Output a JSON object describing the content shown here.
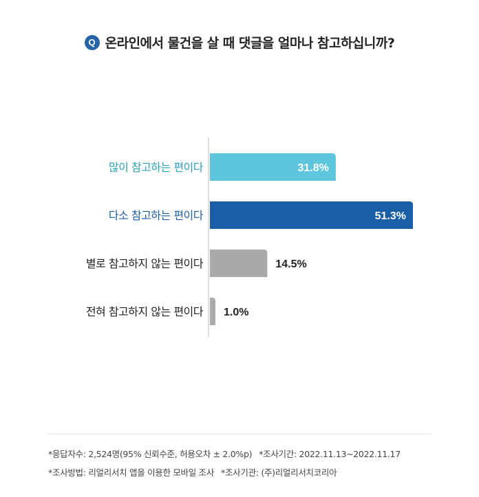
{
  "question": {
    "badge": "Q",
    "text": "온라인에서 물건을 살 때 댓글을 얼마나 참고하십니까?"
  },
  "chart_data": {
    "type": "bar",
    "orientation": "horizontal",
    "categories": [
      "많이 참고하는 편이다",
      "다소 참고하는 편이다",
      "별로 참고하지 않는 편이다",
      "전혀 참고하지 않는 편이다"
    ],
    "values": [
      31.8,
      51.3,
      14.5,
      1.0
    ],
    "value_labels": [
      "31.8%",
      "51.3%",
      "14.5%",
      "1.0%"
    ],
    "bar_colors": [
      "#5ec6dc",
      "#1a5ea8",
      "#a9a9ab",
      "#a9a9ab"
    ],
    "label_colors": [
      "#2ba3bf",
      "#1a5ea8",
      "#222222",
      "#222222"
    ],
    "value_label_inside": [
      true,
      true,
      false,
      false
    ],
    "xlim": [
      0,
      51.3
    ],
    "title": "",
    "xlabel": "",
    "ylabel": ""
  },
  "footer": {
    "respondents": "*응답자수: 2,524명(95% 신뢰수준, 허용오차 ± 2.0%p)",
    "period": "*조사기간: 2022.11.13~2022.11.17",
    "method": "*조사방법: 리얼리서치 앱을 이용한 모바일 조사",
    "agency": "*조사기관: (주)리얼리서치코리아"
  }
}
